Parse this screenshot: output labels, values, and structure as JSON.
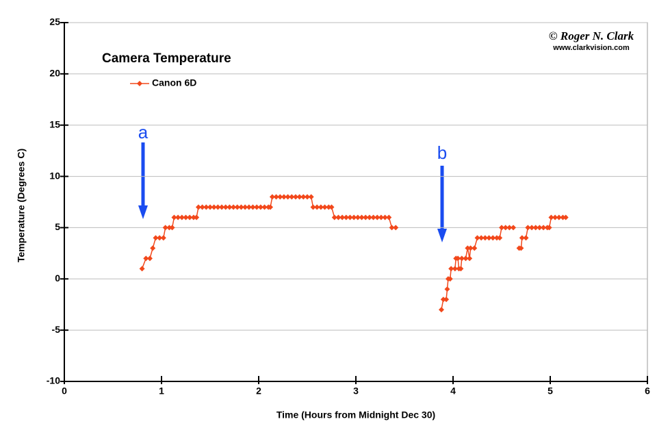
{
  "chart_data": {
    "type": "line",
    "title": "Camera Temperature",
    "xlabel": "Time (Hours from Midnight Dec 30)",
    "ylabel": "Temperature (Degrees C)",
    "credit": "© Roger N. Clark",
    "credit_url": "www.clarkvision.com",
    "annotations": [
      "a",
      "b"
    ],
    "xlim": [
      0,
      6
    ],
    "xticks": [
      0,
      1,
      2,
      3,
      4,
      5,
      6
    ],
    "ylim": [
      -10,
      25
    ],
    "yticks": [
      -10,
      -5,
      0,
      5,
      10,
      15,
      20,
      25
    ],
    "grid": true,
    "series": [
      {
        "name": "Canon 6D",
        "color": "#f2481b",
        "x": [
          0.8,
          0.84,
          0.88,
          0.91,
          0.94,
          0.98,
          1.02,
          1.04,
          1.08,
          1.11,
          1.13,
          1.17,
          1.21,
          1.25,
          1.29,
          1.33,
          1.36,
          1.38,
          1.42,
          1.46,
          1.5,
          1.54,
          1.58,
          1.62,
          1.66,
          1.7,
          1.74,
          1.78,
          1.82,
          1.86,
          1.9,
          1.94,
          1.98,
          2.02,
          2.06,
          2.1,
          2.12,
          2.14,
          2.18,
          2.22,
          2.26,
          2.3,
          2.34,
          2.38,
          2.42,
          2.46,
          2.5,
          2.54,
          2.56,
          2.6,
          2.64,
          2.68,
          2.72,
          2.75,
          2.78,
          2.82,
          2.86,
          2.9,
          2.94,
          2.98,
          3.02,
          3.06,
          3.1,
          3.14,
          3.18,
          3.22,
          3.26,
          3.3,
          3.34,
          3.37,
          3.41,
          3.6,
          3.88,
          3.9,
          3.93,
          3.94,
          3.95,
          3.97,
          3.98,
          4.02,
          4.03,
          4.05,
          4.06,
          4.08,
          4.09,
          4.13,
          4.15,
          4.17,
          4.18,
          4.22,
          4.25,
          4.29,
          4.33,
          4.37,
          4.41,
          4.45,
          4.48,
          4.5,
          4.54,
          4.58,
          4.62,
          4.65,
          4.68,
          4.7,
          4.71,
          4.75,
          4.77,
          4.81,
          4.85,
          4.89,
          4.93,
          4.97,
          4.99,
          5.01,
          5.05,
          5.09,
          5.13,
          5.16
        ],
        "values": [
          1,
          2,
          2,
          3,
          4,
          4,
          4,
          5,
          5,
          5,
          6,
          6,
          6,
          6,
          6,
          6,
          6,
          7,
          7,
          7,
          7,
          7,
          7,
          7,
          7,
          7,
          7,
          7,
          7,
          7,
          7,
          7,
          7,
          7,
          7,
          7,
          7,
          8,
          8,
          8,
          8,
          8,
          8,
          8,
          8,
          8,
          8,
          8,
          7,
          7,
          7,
          7,
          7,
          7,
          6,
          6,
          6,
          6,
          6,
          6,
          6,
          6,
          6,
          6,
          6,
          6,
          6,
          6,
          6,
          5,
          5,
          null,
          -3,
          -2,
          -2,
          -1,
          0,
          0,
          1,
          1,
          2,
          2,
          1,
          1,
          2,
          2,
          3,
          2,
          3,
          3,
          4,
          4,
          4,
          4,
          4,
          4,
          4,
          5,
          5,
          5,
          5,
          null,
          3,
          3,
          4,
          4,
          5,
          5,
          5,
          5,
          5,
          5,
          5,
          6,
          6,
          6,
          6,
          6
        ]
      }
    ]
  }
}
